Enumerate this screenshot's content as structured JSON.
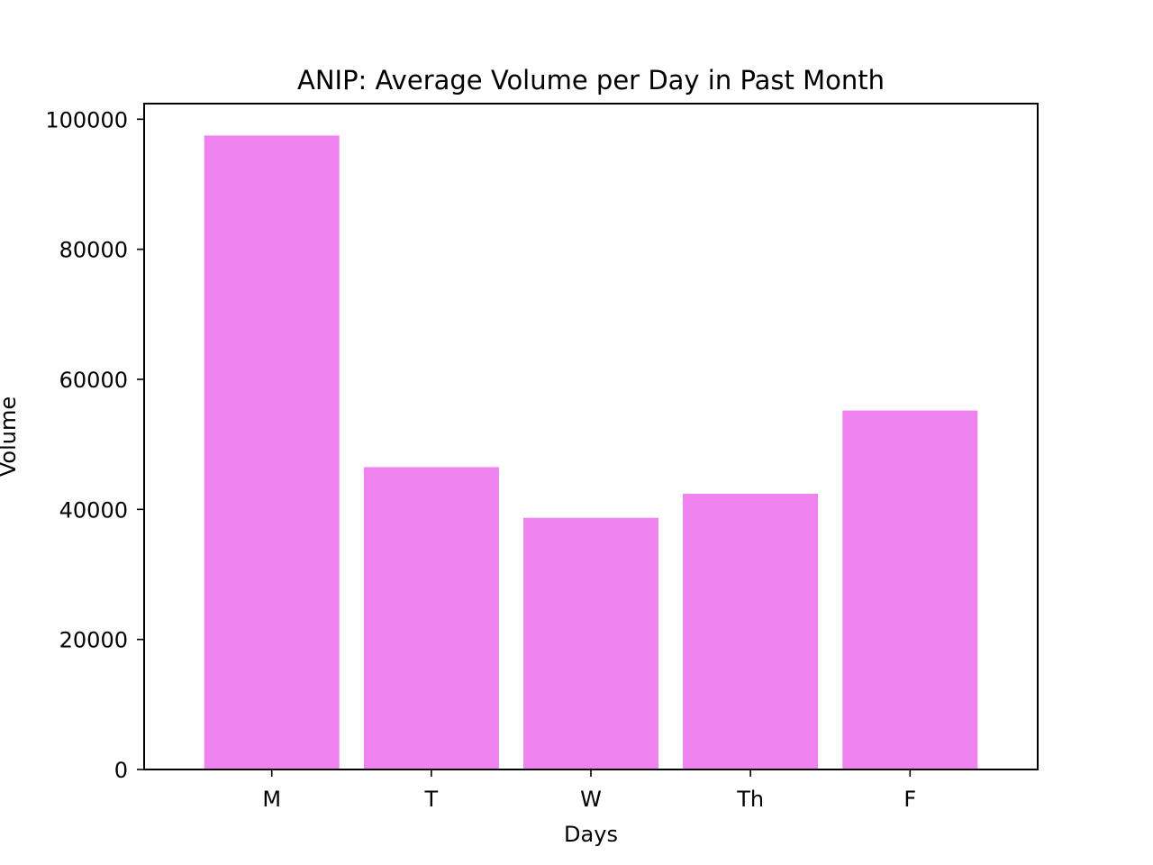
{
  "chart_data": {
    "type": "bar",
    "title": "ANIP: Average Volume per Day in Past Month",
    "xlabel": "Days",
    "ylabel": "Volume",
    "categories": [
      "M",
      "T",
      "W",
      "Th",
      "F"
    ],
    "values": [
      97500,
      46500,
      38700,
      42400,
      55200
    ],
    "ylim": [
      0,
      102400
    ],
    "yticks": [
      0,
      20000,
      40000,
      60000,
      80000,
      100000
    ],
    "ytick_labels": [
      "0",
      "20000",
      "40000",
      "60000",
      "80000",
      "100000"
    ],
    "bar_color": "#ee82ee",
    "grid": false,
    "legend": "none"
  }
}
